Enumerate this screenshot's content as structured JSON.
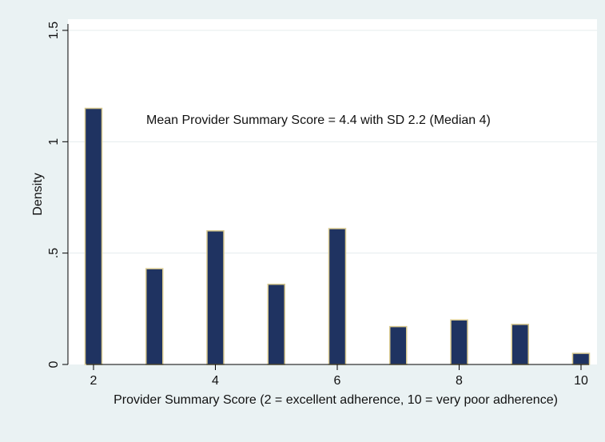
{
  "chart_data": {
    "type": "bar",
    "title": "",
    "xlabel": "Provider Summary Score (2 = excellent adherence, 10 = very poor adherence)",
    "ylabel": "Density",
    "annotation": "Mean Provider Summary Score = 4.4 with SD 2.2 (Median 4)",
    "x": [
      2,
      3,
      4,
      5,
      6,
      7,
      8,
      9,
      10
    ],
    "values": [
      1.15,
      0.43,
      0.6,
      0.36,
      0.61,
      0.17,
      0.2,
      0.18,
      0.05
    ],
    "xlim": [
      2,
      10
    ],
    "ylim": [
      0,
      1.5
    ],
    "x_ticks": [
      2,
      4,
      6,
      8,
      10
    ],
    "x_tick_labels": [
      "2",
      "4",
      "6",
      "8",
      "10"
    ],
    "y_ticks": [
      0,
      0.5,
      1,
      1.5
    ],
    "y_tick_labels": [
      "0",
      ".5",
      "1",
      "1.5"
    ],
    "grid": true,
    "colors": {
      "bar_fill": "#1f3361",
      "bar_edge": "#d8c98f",
      "plot_background": "#ffffff",
      "outer_background": "#eaf2f3",
      "grid": "#e4ecee"
    }
  }
}
